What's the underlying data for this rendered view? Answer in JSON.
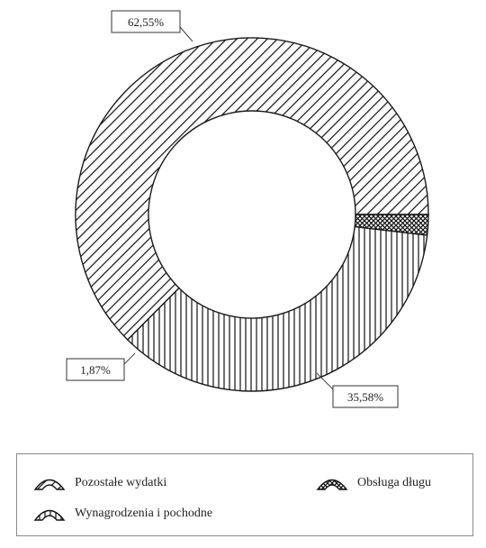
{
  "chart_data": {
    "type": "donut",
    "series": [
      {
        "name": "Pozostałe wydatki",
        "value": 62.55,
        "label": "62,55%",
        "pattern": "diagonal"
      },
      {
        "name": "Wynagrodzenia i pochodne",
        "value": 35.58,
        "label": "35,58%",
        "pattern": "vertical"
      },
      {
        "name": "Obsługa długu",
        "value": 1.87,
        "label": "1,87%",
        "pattern": "crosshatch"
      }
    ],
    "legend_position": "bottom",
    "colors": {
      "stroke": "#1a1a1a",
      "fill": "#ffffff",
      "label_border": "#333333"
    }
  }
}
